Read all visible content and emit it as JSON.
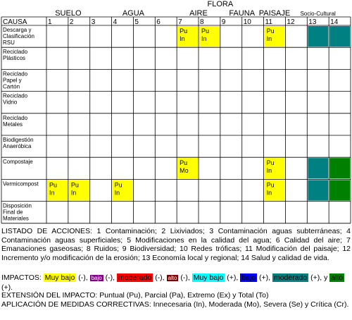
{
  "groups": [
    {
      "label": "SUELO",
      "span": [
        1,
        2
      ]
    },
    {
      "label": "AGUA",
      "span": [
        3,
        6
      ]
    },
    {
      "label": "AIRE",
      "span": [
        7,
        8
      ]
    },
    {
      "label": "FLORA",
      "span": [
        8,
        9
      ]
    },
    {
      "label": "FAUNA",
      "span": [
        9,
        10
      ]
    },
    {
      "label": "PAISAJE",
      "span": [
        11,
        11
      ]
    },
    {
      "label": "Socio-Cultural",
      "span": [
        12,
        14
      ]
    }
  ],
  "causa_label": "CAUSA",
  "columns": [
    "1",
    "2",
    "3",
    "4",
    "5",
    "6",
    "7",
    "8",
    "9",
    "10",
    "11",
    "12",
    "13",
    "14"
  ],
  "rows": [
    {
      "label": [
        "Descarga y",
        "Clasificación",
        "RSU"
      ],
      "cells": [
        {
          "col": 7,
          "color": "#ffff00",
          "text": [
            "Pu",
            "In"
          ]
        },
        {
          "col": 8,
          "color": "#ffff00",
          "text": [
            "Pu",
            "In"
          ]
        },
        {
          "col": 11,
          "color": "#ffff00",
          "text": [
            "Pu",
            "In"
          ]
        },
        {
          "col": 13,
          "color": "#008080"
        },
        {
          "col": 14,
          "color": "#008080"
        }
      ]
    },
    {
      "label": [
        "Reciclado",
        "Plásticos"
      ],
      "cells": []
    },
    {
      "label": [
        "Reciclado",
        "Papel y",
        "Cartón"
      ],
      "cells": []
    },
    {
      "label": [
        "Reciclado",
        "Vidrio"
      ],
      "cells": []
    },
    {
      "label": [
        "Reciclado",
        "Metales"
      ],
      "cells": []
    },
    {
      "label": [
        "Biodigestión",
        "Anaeróbica"
      ],
      "cells": []
    },
    {
      "label": [
        "Compostaje"
      ],
      "cells": [
        {
          "col": 7,
          "color": "#ffff00",
          "text": [
            "Pu",
            "Mo"
          ]
        },
        {
          "col": 11,
          "color": "#ffff00",
          "text": [
            "Pu",
            "In"
          ]
        },
        {
          "col": 13,
          "color": "#008080"
        },
        {
          "col": 14,
          "color": "#008000"
        }
      ]
    },
    {
      "label": [
        "Vermicompost"
      ],
      "cells": [
        {
          "col": 1,
          "color": "#ffff00",
          "text": [
            "Pu",
            "In"
          ]
        },
        {
          "col": 2,
          "color": "#ffff00",
          "text": [
            "Pu",
            "In"
          ]
        },
        {
          "col": 4,
          "color": "#ffff00",
          "text": [
            "Pu",
            "In"
          ]
        },
        {
          "col": 11,
          "color": "#ffff00",
          "text": [
            "Pu",
            "In"
          ]
        },
        {
          "col": 13,
          "color": "#008080"
        },
        {
          "col": 14,
          "color": "#008000"
        }
      ]
    },
    {
      "label": [
        "Disposición",
        "Final de",
        "Materiales"
      ],
      "cells": []
    }
  ],
  "listado": "LISTADO DE ACCIONES: 1 Contaminación; 2 Lixiviados; 3 Contaminación aguas subterráneas; 4 Contaminación aguas superficiales; 5 Modificaciones en la calidad del agua; 6 Calidad del aire; 7 Emanaciones gaseosas; 8 Ruidos; 9 Biodiversidad; 10 Redes tróficas; 11 Modificación del paisaje; 12 Incremento y/o modificación de la erosión; 13 Economía local y regional; 14 Salud y calidad de vida.",
  "impactos": {
    "prefix": "IMPACTOS:",
    "muy_bajo_neg": "Muy bajo",
    "bajo_neg": "bajo",
    "moderado_neg": "moderado",
    "alto_neg": "alto",
    "muy_bajo_pos": "Muy bajo",
    "bajo_pos": "bajo",
    "moderado_pos": "moderado",
    "alto_pos": "alto",
    "neg_suffix": "(-),",
    "pos_suffix": "(+),",
    "y": "y",
    "final_suffix": "(+).",
    "colors": {
      "muy_bajo_neg": "#ffff00",
      "bajo_neg": "#800080",
      "moderado_neg": "#ff0000",
      "alto_neg": "#800000",
      "muy_bajo_pos": "#00ffff",
      "bajo_pos": "#0000ff",
      "moderado_pos": "#008080",
      "alto_pos": "#008000"
    }
  },
  "extension": "EXTENSIÓN DEL IMPACTO: Puntual (Pu), Parcial (Pa), Extremo (Ex) y Total (To)",
  "medidas": "APLICACIÓN DE MEDIDAS CORRECTIVAS: Innecesaria (In), Moderada (Mo), Severa (Se) y Crítica (Cr)."
}
